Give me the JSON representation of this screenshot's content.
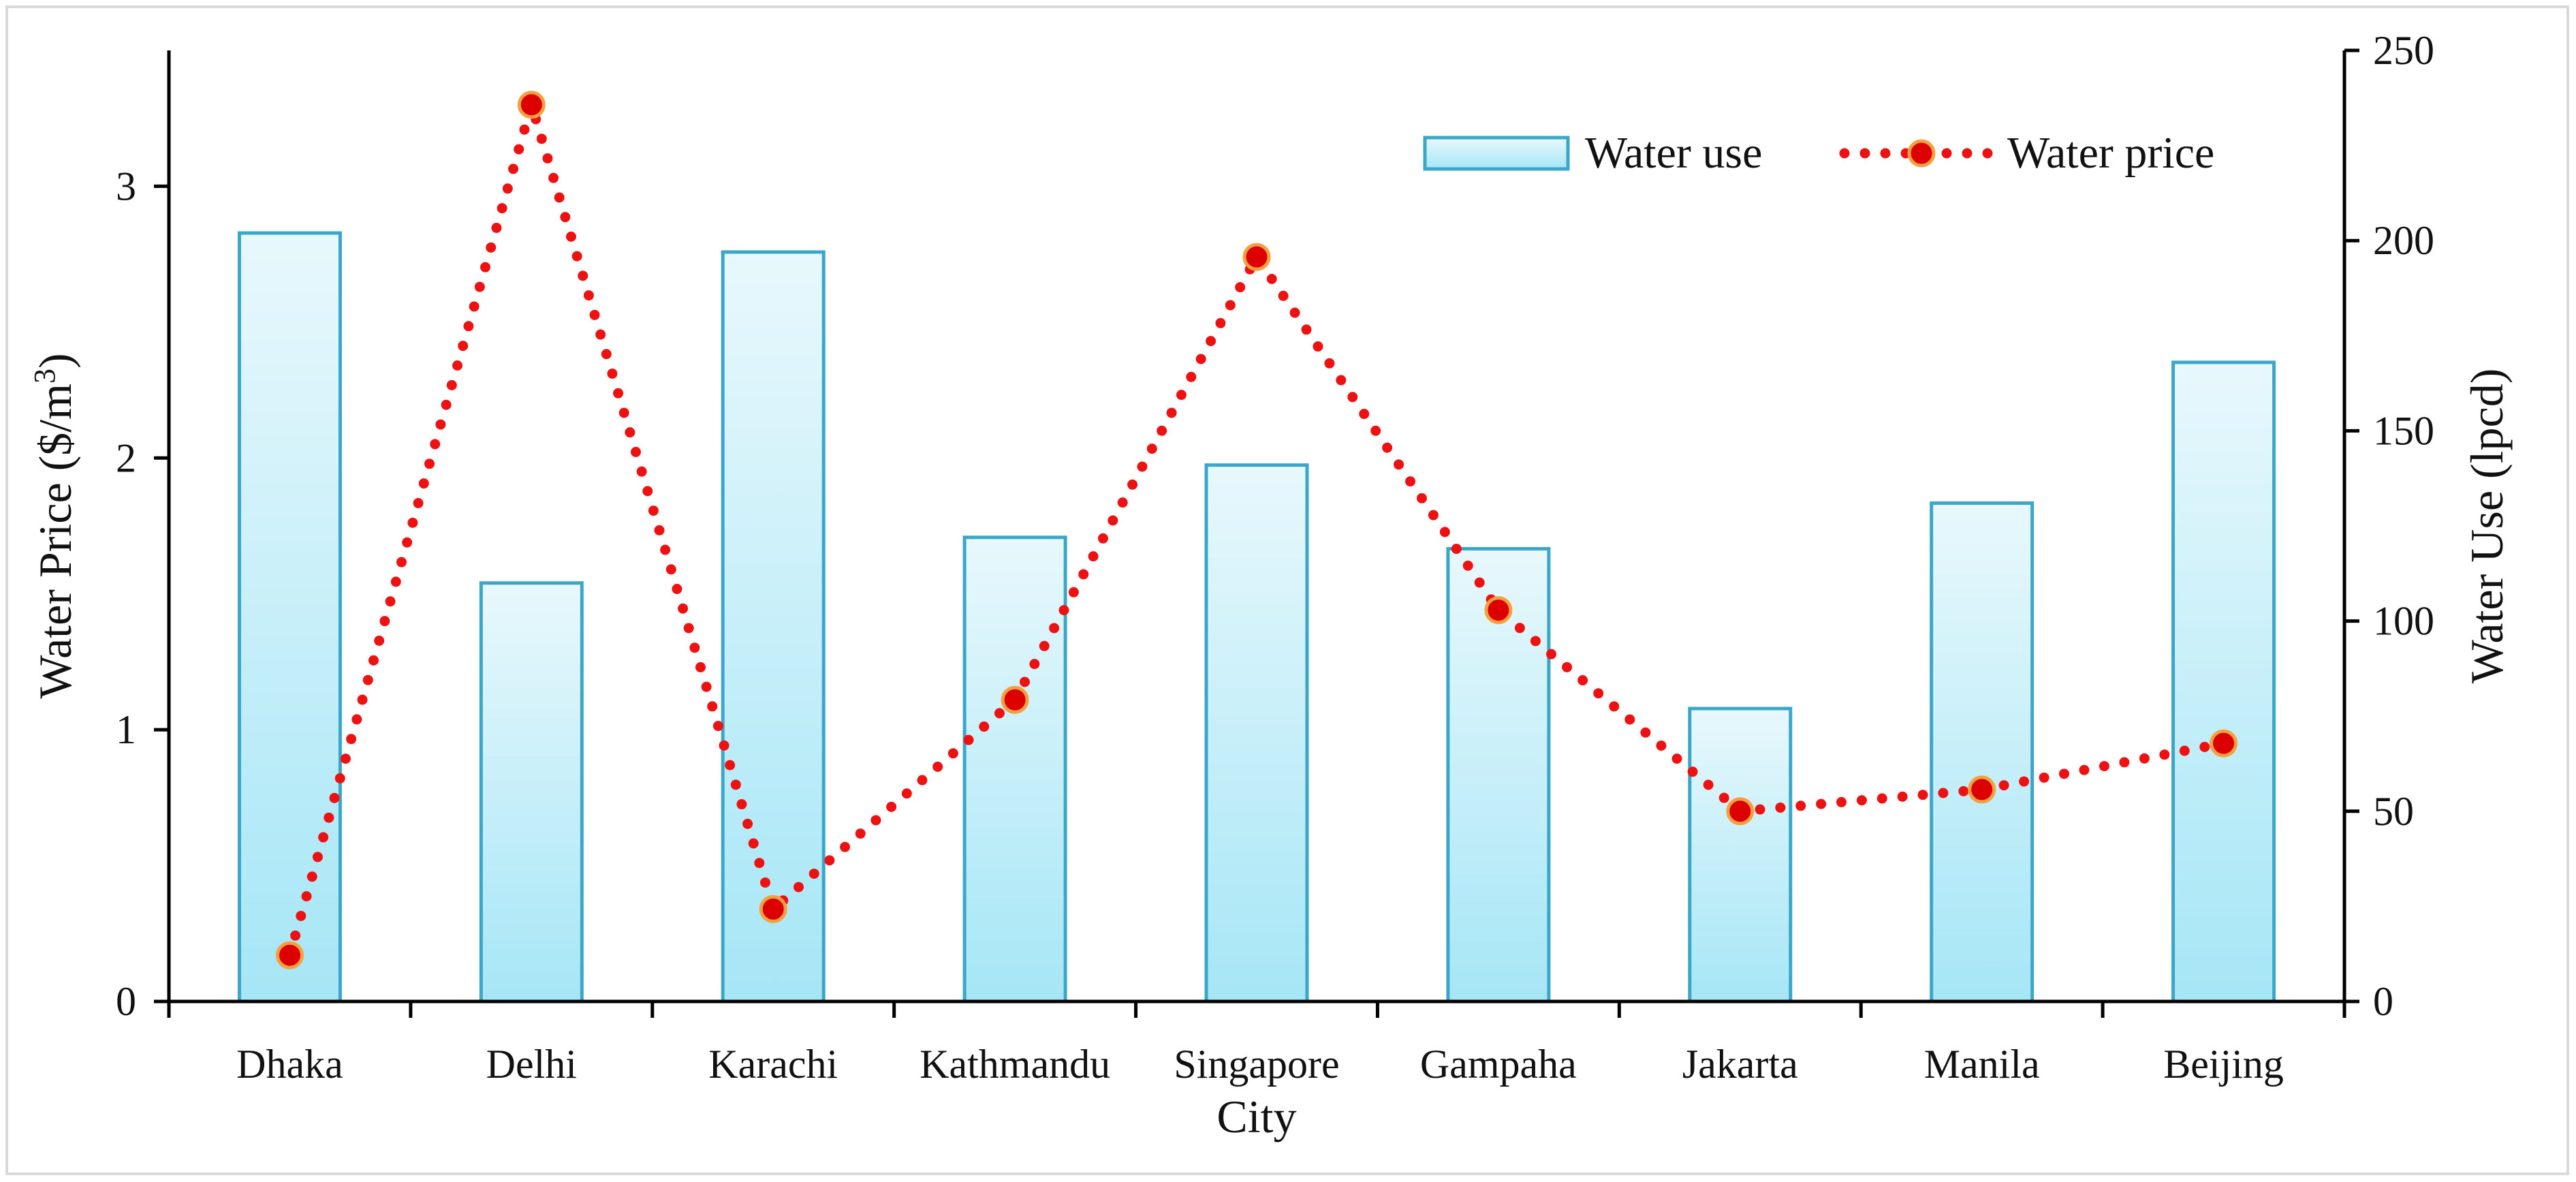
{
  "chart_data": {
    "type": "bar+line",
    "title": "",
    "xlabel": "City",
    "ylabel_left": "Water Price ($/m³)",
    "ylabel_left_prefix": "Water Price ($/m",
    "ylabel_left_sup": "3",
    "ylabel_left_suffix": ")",
    "ylabel_right": "Water Use (lpcd)",
    "categories": [
      "Dhaka",
      "Delhi",
      "Karachi",
      "Kathmandu",
      "Singapore",
      "Gampaha",
      "Jakarta",
      "Manila",
      "Beijing"
    ],
    "ylim_left": [
      0,
      3.5
    ],
    "yticks_left": [
      "0",
      "1",
      "2",
      "3"
    ],
    "ylim_right": [
      0,
      250
    ],
    "yticks_right": [
      "0",
      "50",
      "100",
      "150",
      "200",
      "250"
    ],
    "series": [
      {
        "name": "Water use",
        "type": "bar",
        "axis": "right",
        "values": [
          202,
          110,
          197,
          122,
          141,
          119,
          77,
          131,
          168
        ],
        "color": "#b8ecf8",
        "edge_color": "#3aa7c9"
      },
      {
        "name": "Water price",
        "type": "line",
        "axis": "left",
        "values": [
          0.17,
          3.3,
          0.34,
          1.11,
          2.74,
          1.44,
          0.7,
          0.78,
          0.95
        ],
        "color": "#ee1111",
        "marker_color": "#dd0000",
        "marker_edge": "#f5a040",
        "line_style": "dotted"
      }
    ],
    "legend": {
      "position": "top-right",
      "entries": [
        "Water use",
        "Water price"
      ]
    }
  }
}
